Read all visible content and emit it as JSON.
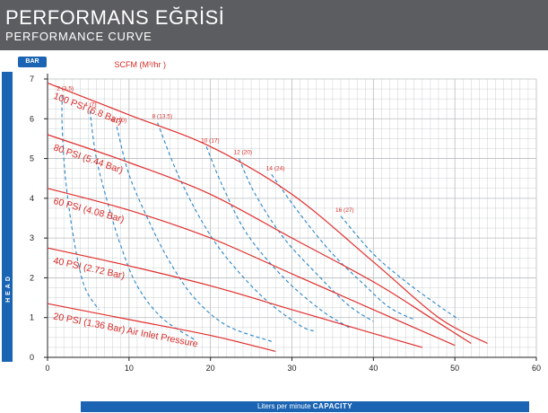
{
  "header": {
    "title": "PERFORMANS EĞRİSİ",
    "subtitle": "PERFORMANCE CURVE"
  },
  "unit_badge": "BAR",
  "y_axis_band": "HEAD",
  "x_axis_band": {
    "prefix": "Liters per minute",
    "emphasis": "CAPACITY"
  },
  "colors": {
    "banner": "#5b5d60",
    "accent_blue": "#1a64b3",
    "pressure_curve": "#e0302e",
    "air_curve": "#2a86c8",
    "grid": "#b9bcbf",
    "annotation_red": "#d62b27"
  },
  "chart_data": {
    "type": "line",
    "xlabel": "Liters per minute CAPACITY",
    "ylabel": "HEAD",
    "y_unit": "BAR",
    "xlim": [
      0,
      60
    ],
    "ylim": [
      0,
      7
    ],
    "x_ticks": [
      0,
      10,
      20,
      30,
      40,
      50,
      60
    ],
    "y_ticks": [
      0,
      1,
      2,
      3,
      4,
      5,
      6,
      7
    ],
    "grid": true,
    "air_consumption_header": "SCFM (M³/hr )",
    "pressure_series": [
      {
        "label": "100 PSI (6.8 Bar)",
        "points": [
          [
            0,
            6.9
          ],
          [
            10,
            6.1
          ],
          [
            20,
            5.3
          ],
          [
            30,
            4.1
          ],
          [
            40,
            2.4
          ],
          [
            48,
            1.0
          ],
          [
            54,
            0.35
          ]
        ]
      },
      {
        "label": "80 PSI (5.44 Bar)",
        "points": [
          [
            0,
            5.6
          ],
          [
            10,
            4.9
          ],
          [
            20,
            4.1
          ],
          [
            30,
            3.0
          ],
          [
            40,
            1.9
          ],
          [
            47,
            1.0
          ],
          [
            52,
            0.35
          ]
        ]
      },
      {
        "label": "60 PSI (4.08 Bar)",
        "points": [
          [
            0,
            4.25
          ],
          [
            10,
            3.7
          ],
          [
            20,
            3.0
          ],
          [
            30,
            2.1
          ],
          [
            40,
            1.2
          ],
          [
            50,
            0.3
          ]
        ]
      },
      {
        "label": "40 PSI (2.72 Bar)",
        "points": [
          [
            0,
            2.75
          ],
          [
            10,
            2.3
          ],
          [
            20,
            1.8
          ],
          [
            30,
            1.2
          ],
          [
            40,
            0.6
          ],
          [
            46,
            0.25
          ]
        ]
      },
      {
        "label": "20 PSI (1.36 Bar) Air Inlet Pressure",
        "points": [
          [
            0,
            1.35
          ],
          [
            10,
            0.95
          ],
          [
            20,
            0.55
          ],
          [
            28,
            0.15
          ]
        ]
      }
    ],
    "air_series": [
      {
        "label": "2 (3.5)",
        "points": [
          [
            1.8,
            6.6
          ],
          [
            1.8,
            5.8
          ],
          [
            2.2,
            4.5
          ],
          [
            3.2,
            3.0
          ],
          [
            4.5,
            1.8
          ],
          [
            6.3,
            1.2
          ]
        ]
      },
      {
        "label": "4 (7)",
        "points": [
          [
            5.2,
            6.2
          ],
          [
            6.0,
            5.0
          ],
          [
            7.5,
            3.8
          ],
          [
            9.0,
            2.8
          ],
          [
            11.0,
            1.8
          ],
          [
            14.0,
            1.0
          ],
          [
            18.0,
            0.45
          ]
        ]
      },
      {
        "label": "6 (10)",
        "points": [
          [
            8.5,
            5.8
          ],
          [
            10.0,
            4.6
          ],
          [
            12.5,
            3.4
          ],
          [
            15.0,
            2.4
          ],
          [
            18.0,
            1.5
          ],
          [
            22.0,
            0.8
          ],
          [
            27.5,
            0.4
          ]
        ]
      },
      {
        "label": "8 (13.5)",
        "points": [
          [
            13.5,
            5.9
          ],
          [
            16.0,
            4.6
          ],
          [
            19.0,
            3.4
          ],
          [
            22.0,
            2.5
          ],
          [
            26.5,
            1.5
          ],
          [
            31.0,
            0.8
          ],
          [
            33.0,
            0.65
          ]
        ]
      },
      {
        "label": "10 (17)",
        "points": [
          [
            19.5,
            5.3
          ],
          [
            21.5,
            4.3
          ],
          [
            24.5,
            3.1
          ],
          [
            29.0,
            2.0
          ],
          [
            33.5,
            1.2
          ],
          [
            37.0,
            0.75
          ]
        ]
      },
      {
        "label": "12 (20)",
        "points": [
          [
            23.5,
            5.0
          ],
          [
            25.5,
            4.1
          ],
          [
            29.0,
            3.0
          ],
          [
            33.5,
            2.0
          ],
          [
            37.0,
            1.3
          ],
          [
            40.0,
            0.9
          ]
        ]
      },
      {
        "label": "14 (24)",
        "points": [
          [
            27.5,
            4.6
          ],
          [
            31.0,
            3.6
          ],
          [
            35.0,
            2.6
          ],
          [
            39.0,
            1.8
          ],
          [
            42.0,
            1.25
          ],
          [
            45.0,
            0.95
          ]
        ]
      },
      {
        "label": "16 (27)",
        "points": [
          [
            36.0,
            3.55
          ],
          [
            40.0,
            2.6
          ],
          [
            44.0,
            1.9
          ],
          [
            48.0,
            1.3
          ],
          [
            50.5,
            0.95
          ]
        ]
      }
    ]
  }
}
